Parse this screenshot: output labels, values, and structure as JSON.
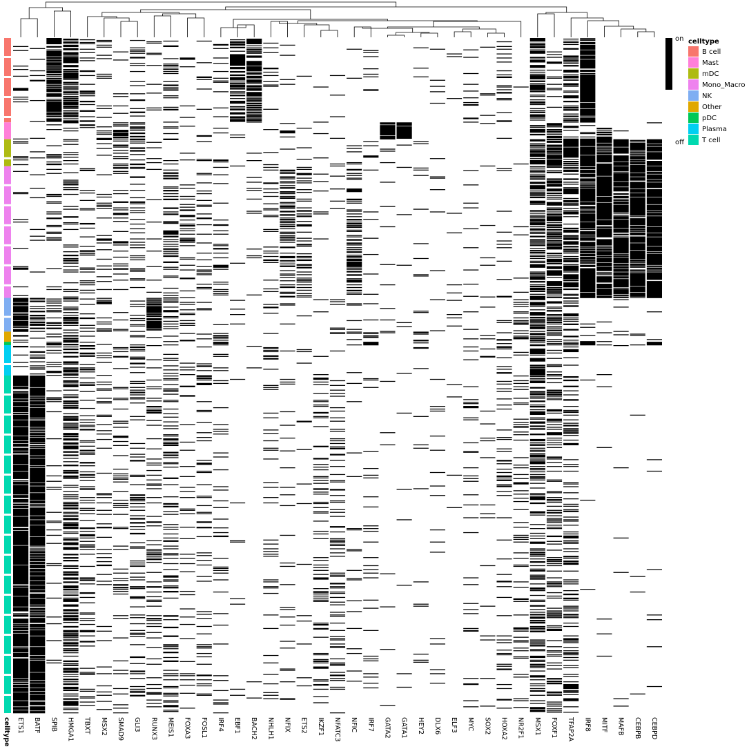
{
  "chart_data": {
    "type": "heatmap",
    "title": "",
    "xlabel": "",
    "ylabel": "",
    "value_legend": {
      "on_label": "on",
      "off_label": "off",
      "on_color": "#000000",
      "off_color": "#ffffff"
    },
    "annotation": {
      "label": "celltype",
      "legend_title": "celltype",
      "categories": [
        {
          "name": "B cell",
          "color": "#F8766D"
        },
        {
          "name": "Mast",
          "color": "#FF7FD9"
        },
        {
          "name": "mDC",
          "color": "#AEBB12"
        },
        {
          "name": "Mono_Macro",
          "color": "#EE82EE"
        },
        {
          "name": "NK",
          "color": "#7FAEF2"
        },
        {
          "name": "Other",
          "color": "#E0A800"
        },
        {
          "name": "pDC",
          "color": "#00C857"
        },
        {
          "name": "Plasma",
          "color": "#00CFF2"
        },
        {
          "name": "T cell",
          "color": "#00D9B0"
        }
      ],
      "row_blocks": [
        {
          "celltype": "B cell",
          "rows": 125
        },
        {
          "celltype": "Mast",
          "rows": 25
        },
        {
          "celltype": "mDC",
          "rows": 40
        },
        {
          "celltype": "Mono_Macro",
          "rows": 195
        },
        {
          "celltype": "NK",
          "rows": 50
        },
        {
          "celltype": "Other",
          "rows": 15
        },
        {
          "celltype": "pDC",
          "rows": 5
        },
        {
          "celltype": "Plasma",
          "rows": 45
        },
        {
          "celltype": "T cell",
          "rows": 500
        }
      ]
    },
    "columns": [
      "ETS1",
      "BATF",
      "SPIB",
      "HMGA1",
      "TBXT",
      "MSX2",
      "SMAD9",
      "GLI3",
      "RUNX3",
      "MEIS1",
      "FOXA3",
      "FOSL1",
      "IRF4",
      "EBF1",
      "BACH2",
      "NHLH1",
      "NFIX",
      "ETS2",
      "IKZF1",
      "NFATC3",
      "NFIC",
      "IRF7",
      "GATA2",
      "GATA1",
      "HEY2",
      "DLX6",
      "ELF3",
      "MYC",
      "SOX2",
      "HOXA2",
      "NR2F1",
      "MSX1",
      "FOXF1",
      "TFAP2A",
      "IRF8",
      "MITF",
      "MAFB",
      "CEBPB",
      "CEBPD"
    ],
    "on_fraction": {
      "B cell": [
        0.1,
        0.1,
        0.7,
        0.6,
        0.15,
        0.05,
        0.05,
        0.1,
        0.05,
        0.15,
        0.05,
        0.05,
        0.15,
        0.6,
        0.6,
        0.05,
        0.05,
        0.02,
        0.02,
        0.02,
        0.02,
        0.05,
        0.0,
        0.0,
        0.02,
        0.02,
        0.02,
        0.1,
        0.02,
        0.1,
        0.02,
        0.55,
        0.1,
        0.45,
        0.85,
        0.0,
        0.0,
        0.0,
        0.0
      ],
      "Mast": [
        0.05,
        0.05,
        0.2,
        0.2,
        0.1,
        0.2,
        0.5,
        0.4,
        0.05,
        0.1,
        0.05,
        0.05,
        0.05,
        0.05,
        0.05,
        0.1,
        0.4,
        0.05,
        0.02,
        0.02,
        0.02,
        0.05,
        0.85,
        0.85,
        0.02,
        0.02,
        0.02,
        0.05,
        0.02,
        0.05,
        0.02,
        0.3,
        0.5,
        0.2,
        0.2,
        0.5,
        0.05,
        0.05,
        0.05
      ],
      "mDC": [
        0.1,
        0.1,
        0.2,
        0.2,
        0.05,
        0.1,
        0.2,
        0.2,
        0.05,
        0.1,
        0.05,
        0.05,
        0.05,
        0.05,
        0.05,
        0.05,
        0.1,
        0.05,
        0.02,
        0.02,
        0.2,
        0.1,
        0.02,
        0.02,
        0.05,
        0.02,
        0.02,
        0.05,
        0.02,
        0.05,
        0.02,
        0.6,
        0.8,
        0.8,
        0.85,
        0.8,
        0.8,
        0.85,
        0.85
      ],
      "Mono_Macro": [
        0.05,
        0.05,
        0.1,
        0.2,
        0.1,
        0.1,
        0.15,
        0.15,
        0.05,
        0.2,
        0.15,
        0.15,
        0.15,
        0.05,
        0.05,
        0.15,
        0.3,
        0.25,
        0.02,
        0.02,
        0.3,
        0.05,
        0.02,
        0.02,
        0.05,
        0.02,
        0.02,
        0.05,
        0.02,
        0.05,
        0.02,
        0.5,
        0.55,
        0.55,
        0.85,
        0.85,
        0.85,
        0.85,
        0.85
      ],
      "NK": [
        0.85,
        0.3,
        0.2,
        0.4,
        0.15,
        0.2,
        0.1,
        0.1,
        0.7,
        0.15,
        0.1,
        0.1,
        0.05,
        0.02,
        0.02,
        0.1,
        0.02,
        0.02,
        0.05,
        0.05,
        0.02,
        0.02,
        0.02,
        0.02,
        0.02,
        0.05,
        0.02,
        0.05,
        0.02,
        0.2,
        0.3,
        0.45,
        0.3,
        0.2,
        0.05,
        0.02,
        0.02,
        0.02,
        0.02
      ],
      "Other": [
        0.2,
        0.2,
        0.2,
        0.4,
        0.2,
        0.1,
        0.1,
        0.2,
        0.2,
        0.2,
        0.1,
        0.1,
        0.2,
        0.02,
        0.02,
        0.1,
        0.02,
        0.05,
        0.02,
        0.1,
        0.2,
        0.3,
        0.02,
        0.02,
        0.2,
        0.02,
        0.02,
        0.1,
        0.2,
        0.2,
        0.2,
        0.4,
        0.3,
        0.2,
        0.2,
        0.1,
        0.1,
        0.1,
        0.1
      ],
      "pDC": [
        0.2,
        0.2,
        0.8,
        0.6,
        0.1,
        0.1,
        0.2,
        0.2,
        0.2,
        0.2,
        0.1,
        0.2,
        0.8,
        0.02,
        0.02,
        0.1,
        0.02,
        0.05,
        0.02,
        0.02,
        0.2,
        0.8,
        0.02,
        0.02,
        0.02,
        0.02,
        0.02,
        0.1,
        0.02,
        0.2,
        0.2,
        0.4,
        0.4,
        0.4,
        0.8,
        0.1,
        0.1,
        0.1,
        0.8
      ],
      "Plasma": [
        0.1,
        0.25,
        0.2,
        0.5,
        0.2,
        0.1,
        0.15,
        0.15,
        0.15,
        0.2,
        0.1,
        0.15,
        0.15,
        0.02,
        0.02,
        0.15,
        0.02,
        0.05,
        0.02,
        0.02,
        0.02,
        0.05,
        0.02,
        0.02,
        0.05,
        0.02,
        0.02,
        0.1,
        0.02,
        0.15,
        0.05,
        0.6,
        0.15,
        0.2,
        0.02,
        0.02,
        0.02,
        0.02,
        0.02
      ],
      "T cell": [
        0.85,
        0.8,
        0.05,
        0.45,
        0.15,
        0.12,
        0.1,
        0.15,
        0.15,
        0.2,
        0.08,
        0.1,
        0.08,
        0.01,
        0.01,
        0.08,
        0.05,
        0.03,
        0.15,
        0.15,
        0.03,
        0.06,
        0.01,
        0.01,
        0.03,
        0.03,
        0.01,
        0.05,
        0.02,
        0.12,
        0.1,
        0.35,
        0.25,
        0.25,
        0.01,
        0.01,
        0.01,
        0.01,
        0.01
      ]
    }
  }
}
